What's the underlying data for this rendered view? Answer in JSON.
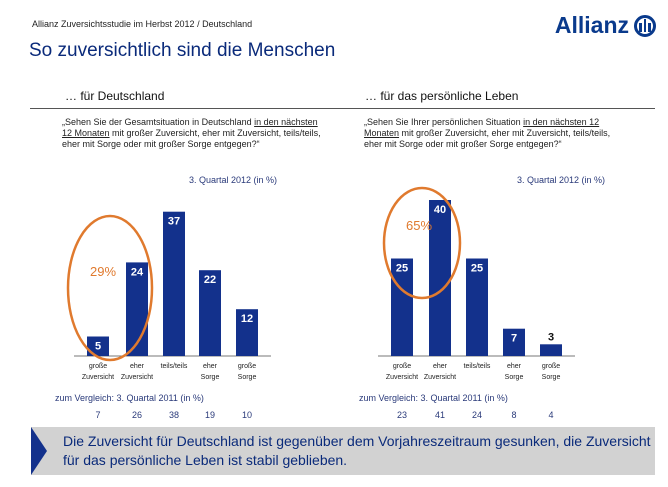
{
  "header": {
    "breadcrumb": "Allianz Zuversichtsstudie im Herbst 2012 / Deutschland",
    "title": "So zuversichtlich sind die Menschen",
    "logo_text": "Allianz"
  },
  "colors": {
    "bar": "#13318c",
    "highlight": "#e07a2e",
    "title": "#0a2a7a"
  },
  "chart_data": [
    {
      "type": "bar",
      "subtitle": "… für Deutschland",
      "question": {
        "pre": "„Sehen Sie der Gesamtsituation in Deutschland ",
        "underlined": "in den nächsten 12 Monaten",
        "post": " mit großer Zuversicht, eher mit Zuversicht, teils/teils, eher mit Sorge oder mit großer Sorge entgegen?“"
      },
      "period": "3. Quartal 2012 (in %)",
      "categories": [
        "große Zuversicht",
        "eher Zuversicht",
        "teils/teils",
        "eher Sorge",
        "große Sorge"
      ],
      "values": [
        5,
        24,
        37,
        22,
        12
      ],
      "highlight": {
        "label": "29%",
        "categories": [
          "große Zuversicht",
          "eher Zuversicht"
        ]
      },
      "comparison_label": "zum Vergleich: 3. Quartal 2011 (in %)",
      "comparison_values": [
        7,
        26,
        38,
        19,
        10
      ]
    },
    {
      "type": "bar",
      "subtitle": "… für das persönliche Leben",
      "question": {
        "pre": "„Sehen Sie Ihrer persönlichen Situation ",
        "underlined": "in den nächsten 12 Monaten",
        "post": " mit großer Zuversicht, eher mit Zuversicht, teils/teils, eher mit Sorge oder mit großer Sorge entgegen?“"
      },
      "period": "3. Quartal 2012 (in %)",
      "categories": [
        "große Zuversicht",
        "eher Zuversicht",
        "teils/teils",
        "eher Sorge",
        "große Sorge"
      ],
      "values": [
        25,
        40,
        25,
        7,
        3
      ],
      "highlight": {
        "label": "65%",
        "categories": [
          "große Zuversicht",
          "eher Zuversicht"
        ]
      },
      "comparison_label": "zum Vergleich: 3. Quartal 2011 (in %)",
      "comparison_values": [
        23,
        41,
        24,
        8,
        4
      ]
    }
  ],
  "conclusion": "Die Zuversicht für Deutschland ist gegenüber dem Vorjahreszeitraum gesunken, die Zuversicht für das persönliche Leben ist stabil geblieben."
}
